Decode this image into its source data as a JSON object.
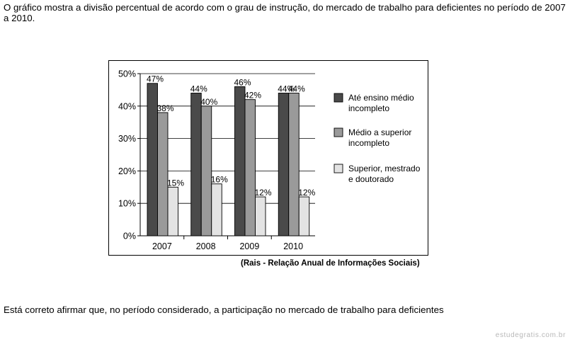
{
  "intro_text": "O gráfico mostra a divisão percentual de acordo com o grau de instrução, do mercado de trabalho para deficientes no período de 2007 a 2010.",
  "source_text": "(Rais - Relação Anual de Informações Sociais)",
  "question_text": "Está correto afirmar que, no período considerado, a participação no mercado de trabalho para deficientes",
  "watermark": "estudegratis.com.br",
  "chart_data": {
    "type": "bar",
    "categories": [
      "2007",
      "2008",
      "2009",
      "2010"
    ],
    "series": [
      {
        "name": "Até ensino médio incompleto",
        "legend_lines": [
          "Até ensino médio",
          "incompleto"
        ],
        "values": [
          47,
          44,
          46,
          44
        ],
        "labels": [
          "47%",
          "44%",
          "46%",
          "44%"
        ],
        "color": "#4a4a4a"
      },
      {
        "name": "Médio a superior incompleto",
        "legend_lines": [
          "Médio a superior",
          "incompleto"
        ],
        "values": [
          38,
          40,
          42,
          44
        ],
        "labels": [
          "38%",
          "40%",
          "42%",
          "44%"
        ],
        "color": "#9a9a9a"
      },
      {
        "name": "Superior, mestrado e doutorado",
        "legend_lines": [
          "Superior, mestrado",
          "e doutorado"
        ],
        "values": [
          15,
          16,
          12,
          12
        ],
        "labels": [
          "15%",
          "16%",
          "12%",
          "12%"
        ],
        "color": "#e3e3e3"
      }
    ],
    "yticks": [
      "0%",
      "10%",
      "20%",
      "30%",
      "40%",
      "50%"
    ],
    "ylim": [
      0,
      50
    ],
    "grid": true,
    "legend_position": "right",
    "title": "",
    "xlabel": "",
    "ylabel": ""
  }
}
